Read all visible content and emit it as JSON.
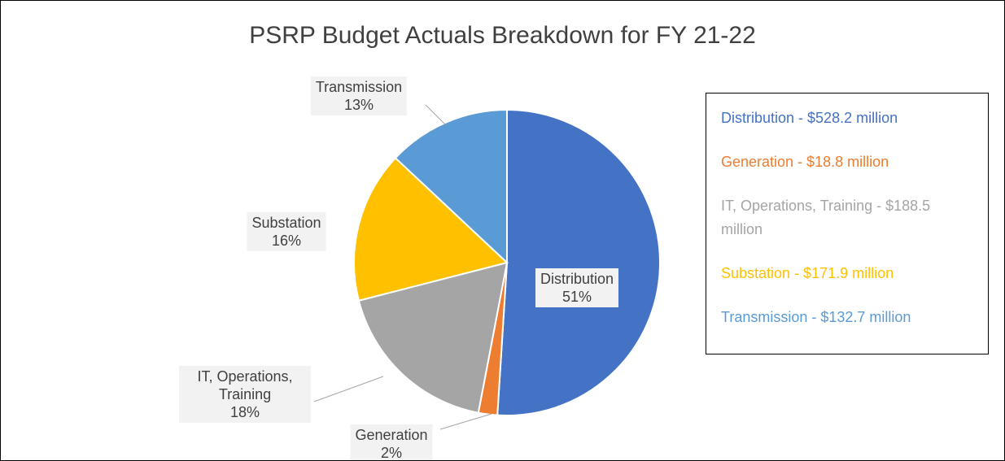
{
  "chart_data": {
    "type": "pie",
    "title": "PSRP Budget Actuals Breakdown for FY 21-22",
    "categories": [
      "Distribution",
      "Generation",
      "IT, Operations, Training",
      "Substation",
      "Transmission"
    ],
    "values": [
      51,
      2,
      18,
      16,
      13
    ],
    "value_labels": [
      "51%",
      "2%",
      "18%",
      "16%",
      "13%"
    ],
    "colors": [
      "#4472c4",
      "#ed7d31",
      "#a5a5a5",
      "#ffc000",
      "#5b9bd5"
    ],
    "legend_labels": [
      "Distribution - $528.2 million",
      "Generation - $18.8 million",
      "IT, Operations, Training - $188.5 million",
      "Substation - $171.9 million",
      "Transmission - $132.7 million"
    ],
    "legend": "right"
  }
}
